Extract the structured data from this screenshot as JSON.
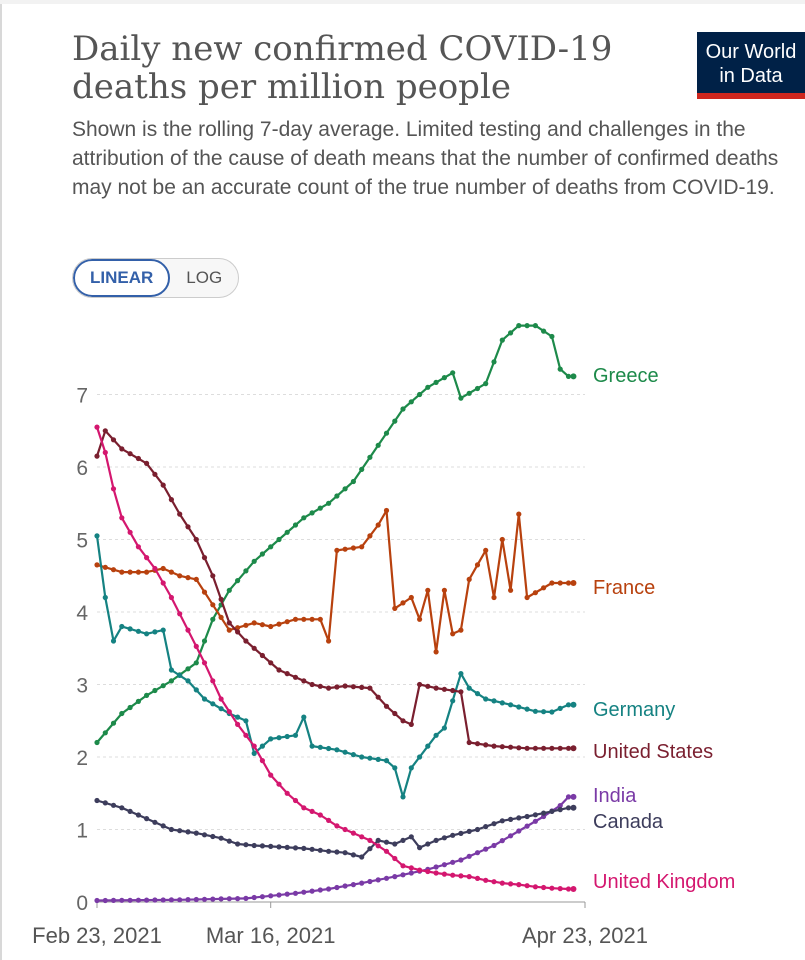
{
  "header": {
    "title": "Daily new confirmed COVID-19 deaths per million people",
    "subtitle": "Shown is the rolling 7-day average. Limited testing and challenges in the attribution of the cause of death means that the number of confirmed deaths may not be an accurate count of the true number of deaths from COVID-19.",
    "logo_line1": "Our World",
    "logo_line2": "in Data"
  },
  "controls": {
    "linear_label": "LINEAR",
    "log_label": "LOG"
  },
  "colors": {
    "Greece": "#1d8a4a",
    "France": "#b8410e",
    "Germany": "#158282",
    "United States": "#7a1f2f",
    "India": "#7a3aa6",
    "Canada": "#3d3d5c",
    "United Kingdom": "#d4176f"
  },
  "chart_data": {
    "type": "line",
    "title": "Daily new confirmed COVID-19 deaths per million people",
    "xlabel": "",
    "ylabel": "",
    "ylim": [
      0,
      7.9
    ],
    "yticks": [
      0,
      1,
      2,
      3,
      4,
      5,
      6,
      7
    ],
    "x_range_days": [
      0,
      59
    ],
    "x_tick_labels": [
      {
        "day": 0,
        "label": "Feb 23, 2021"
      },
      {
        "day": 21,
        "label": "Mar 16, 2021"
      },
      {
        "day": 59,
        "label": "Apr 23, 2021"
      }
    ],
    "series": [
      {
        "name": "Greece",
        "points": [
          [
            0,
            2.2
          ],
          [
            3,
            2.6
          ],
          [
            6,
            2.85
          ],
          [
            9,
            3.05
          ],
          [
            12,
            3.3
          ],
          [
            14,
            3.9
          ],
          [
            16,
            4.3
          ],
          [
            19,
            4.7
          ],
          [
            22,
            5.0
          ],
          [
            25,
            5.3
          ],
          [
            28,
            5.5
          ],
          [
            31,
            5.8
          ],
          [
            34,
            6.3
          ],
          [
            37,
            6.8
          ],
          [
            40,
            7.1
          ],
          [
            43,
            7.3
          ],
          [
            44,
            6.95
          ],
          [
            47,
            7.15
          ],
          [
            49,
            7.75
          ],
          [
            51,
            7.95
          ],
          [
            53,
            7.95
          ],
          [
            55,
            7.8
          ],
          [
            56,
            7.35
          ],
          [
            57,
            7.25
          ]
        ]
      },
      {
        "name": "France",
        "points": [
          [
            0,
            4.65
          ],
          [
            3,
            4.55
          ],
          [
            6,
            4.55
          ],
          [
            8,
            4.6
          ],
          [
            10,
            4.5
          ],
          [
            12,
            4.45
          ],
          [
            14,
            4.1
          ],
          [
            16,
            3.75
          ],
          [
            19,
            3.85
          ],
          [
            21,
            3.8
          ],
          [
            24,
            3.9
          ],
          [
            27,
            3.9
          ],
          [
            28,
            3.6
          ],
          [
            29,
            4.85
          ],
          [
            32,
            4.9
          ],
          [
            34,
            5.2
          ],
          [
            35,
            5.4
          ],
          [
            36,
            4.05
          ],
          [
            38,
            4.2
          ],
          [
            39,
            3.9
          ],
          [
            40,
            4.3
          ],
          [
            41,
            3.45
          ],
          [
            42,
            4.3
          ],
          [
            43,
            3.7
          ],
          [
            44,
            3.75
          ],
          [
            45,
            4.45
          ],
          [
            47,
            4.85
          ],
          [
            48,
            4.2
          ],
          [
            49,
            5.0
          ],
          [
            50,
            4.3
          ],
          [
            51,
            5.35
          ],
          [
            52,
            4.2
          ],
          [
            55,
            4.4
          ],
          [
            57,
            4.4
          ]
        ]
      },
      {
        "name": "Germany",
        "points": [
          [
            0,
            5.05
          ],
          [
            1,
            4.2
          ],
          [
            2,
            3.6
          ],
          [
            3,
            3.8
          ],
          [
            6,
            3.7
          ],
          [
            8,
            3.75
          ],
          [
            9,
            3.2
          ],
          [
            11,
            3.05
          ],
          [
            13,
            2.8
          ],
          [
            16,
            2.6
          ],
          [
            18,
            2.5
          ],
          [
            19,
            2.05
          ],
          [
            21,
            2.25
          ],
          [
            24,
            2.3
          ],
          [
            25,
            2.55
          ],
          [
            26,
            2.15
          ],
          [
            29,
            2.1
          ],
          [
            32,
            2.0
          ],
          [
            35,
            1.95
          ],
          [
            36,
            1.85
          ],
          [
            37,
            1.45
          ],
          [
            38,
            1.85
          ],
          [
            41,
            2.3
          ],
          [
            42,
            2.4
          ],
          [
            44,
            3.15
          ],
          [
            45,
            2.95
          ],
          [
            47,
            2.8
          ],
          [
            50,
            2.72
          ],
          [
            53,
            2.63
          ],
          [
            55,
            2.62
          ],
          [
            57,
            2.72
          ]
        ]
      },
      {
        "name": "United States",
        "points": [
          [
            0,
            6.15
          ],
          [
            1,
            6.5
          ],
          [
            3,
            6.25
          ],
          [
            6,
            6.05
          ],
          [
            8,
            5.75
          ],
          [
            10,
            5.35
          ],
          [
            12,
            5.0
          ],
          [
            14,
            4.5
          ],
          [
            16,
            3.85
          ],
          [
            18,
            3.6
          ],
          [
            20,
            3.4
          ],
          [
            22,
            3.2
          ],
          [
            24,
            3.1
          ],
          [
            26,
            3.0
          ],
          [
            28,
            2.95
          ],
          [
            30,
            2.98
          ],
          [
            33,
            2.95
          ],
          [
            35,
            2.7
          ],
          [
            37,
            2.5
          ],
          [
            38,
            2.45
          ],
          [
            39,
            3.0
          ],
          [
            41,
            2.95
          ],
          [
            44,
            2.9
          ],
          [
            45,
            2.2
          ],
          [
            48,
            2.15
          ],
          [
            52,
            2.12
          ],
          [
            55,
            2.12
          ],
          [
            57,
            2.12
          ]
        ]
      },
      {
        "name": "India",
        "points": [
          [
            0,
            0.02
          ],
          [
            10,
            0.03
          ],
          [
            18,
            0.05
          ],
          [
            24,
            0.12
          ],
          [
            28,
            0.18
          ],
          [
            32,
            0.26
          ],
          [
            36,
            0.35
          ],
          [
            40,
            0.45
          ],
          [
            44,
            0.58
          ],
          [
            48,
            0.78
          ],
          [
            51,
            0.98
          ],
          [
            54,
            1.18
          ],
          [
            56,
            1.33
          ],
          [
            57,
            1.45
          ]
        ]
      },
      {
        "name": "Canada",
        "points": [
          [
            0,
            1.4
          ],
          [
            3,
            1.3
          ],
          [
            6,
            1.15
          ],
          [
            9,
            1.0
          ],
          [
            12,
            0.95
          ],
          [
            15,
            0.88
          ],
          [
            17,
            0.8
          ],
          [
            19,
            0.78
          ],
          [
            22,
            0.76
          ],
          [
            25,
            0.74
          ],
          [
            28,
            0.7
          ],
          [
            30,
            0.68
          ],
          [
            32,
            0.62
          ],
          [
            34,
            0.85
          ],
          [
            36,
            0.8
          ],
          [
            38,
            0.9
          ],
          [
            39,
            0.75
          ],
          [
            41,
            0.85
          ],
          [
            43,
            0.92
          ],
          [
            46,
            1.0
          ],
          [
            49,
            1.12
          ],
          [
            52,
            1.18
          ],
          [
            55,
            1.25
          ],
          [
            57,
            1.3
          ]
        ]
      },
      {
        "name": "United Kingdom",
        "points": [
          [
            0,
            6.55
          ],
          [
            1,
            6.2
          ],
          [
            2,
            5.7
          ],
          [
            3,
            5.3
          ],
          [
            5,
            4.9
          ],
          [
            7,
            4.6
          ],
          [
            9,
            4.2
          ],
          [
            11,
            3.75
          ],
          [
            13,
            3.3
          ],
          [
            15,
            2.8
          ],
          [
            17,
            2.45
          ],
          [
            19,
            2.15
          ],
          [
            21,
            1.75
          ],
          [
            23,
            1.5
          ],
          [
            25,
            1.3
          ],
          [
            27,
            1.2
          ],
          [
            29,
            1.05
          ],
          [
            31,
            0.95
          ],
          [
            33,
            0.85
          ],
          [
            35,
            0.7
          ],
          [
            37,
            0.5
          ],
          [
            39,
            0.44
          ],
          [
            41,
            0.4
          ],
          [
            43,
            0.37
          ],
          [
            45,
            0.35
          ],
          [
            47,
            0.3
          ],
          [
            49,
            0.26
          ],
          [
            51,
            0.24
          ],
          [
            53,
            0.21
          ],
          [
            55,
            0.19
          ],
          [
            57,
            0.18
          ]
        ]
      }
    ],
    "labels": [
      {
        "name": "Greece",
        "text": "Greece"
      },
      {
        "name": "France",
        "text": "France"
      },
      {
        "name": "Germany",
        "text": "Germany"
      },
      {
        "name": "United States",
        "text": "United States"
      },
      {
        "name": "India",
        "text": "India"
      },
      {
        "name": "Canada",
        "text": "Canada"
      },
      {
        "name": "United Kingdom",
        "text": "United Kingdom"
      }
    ]
  }
}
